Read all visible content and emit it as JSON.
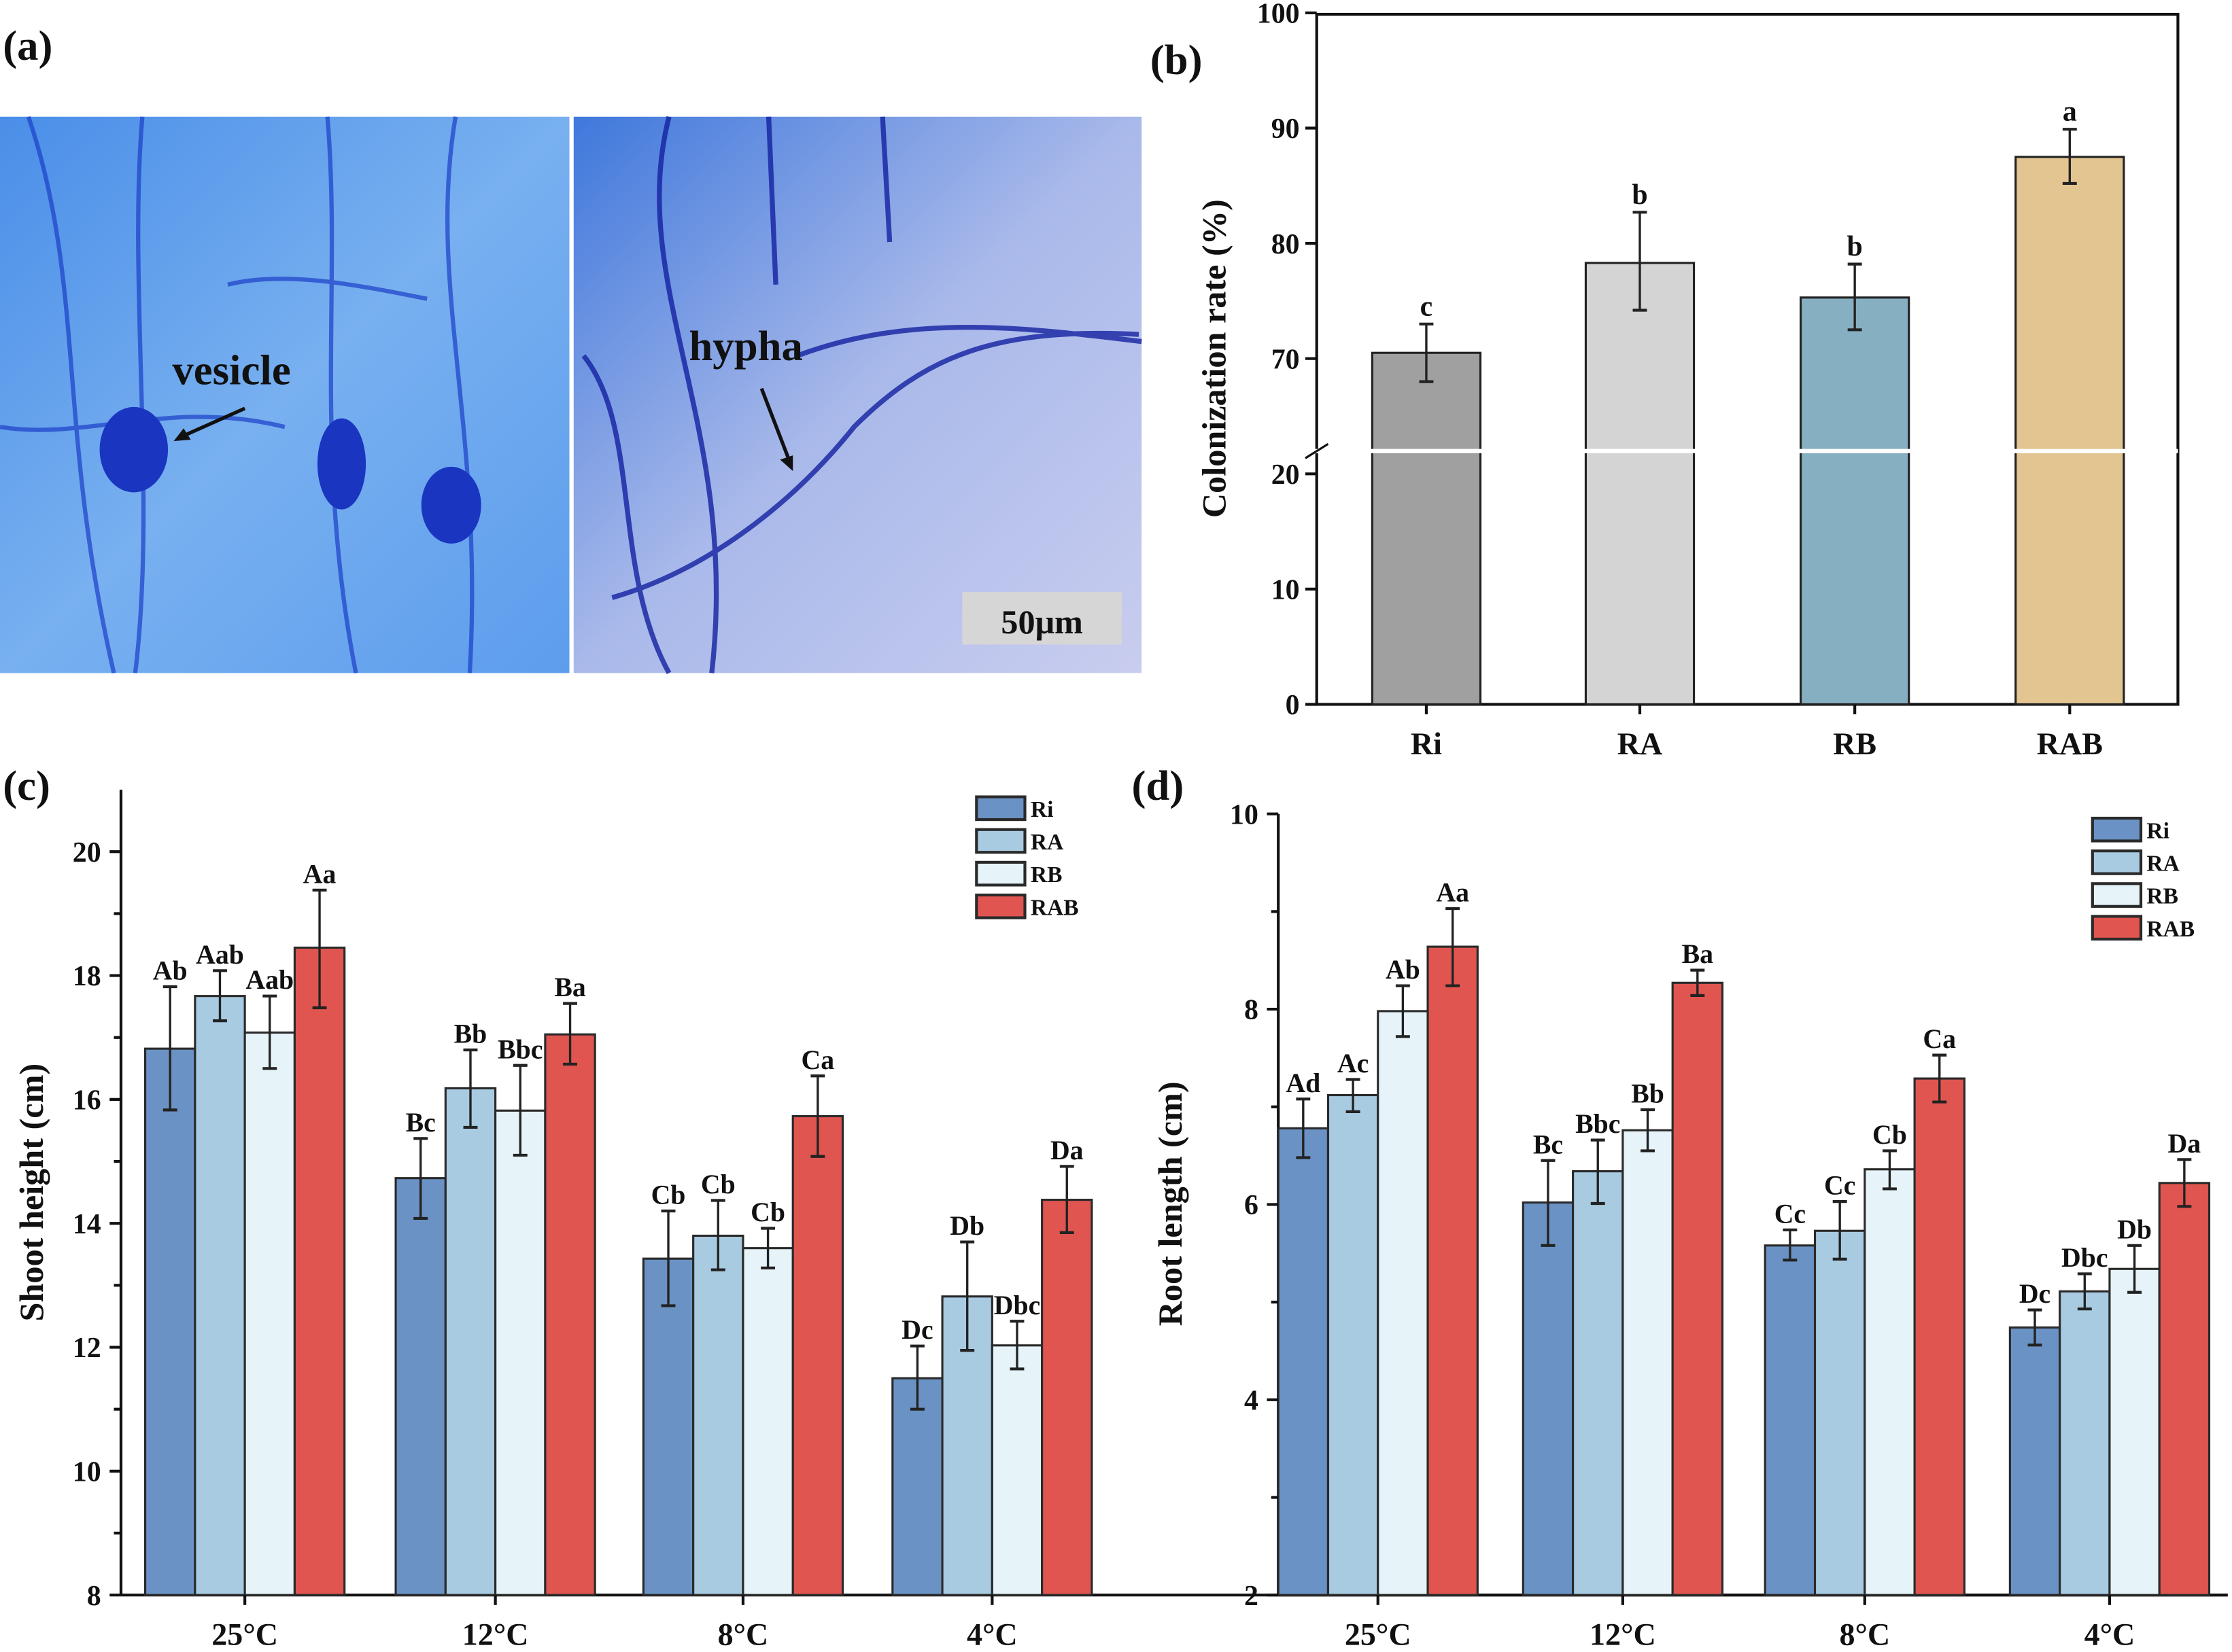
{
  "panels": {
    "a": {
      "label": "(a)",
      "annotations": [
        "vesicle",
        "hypha"
      ],
      "scale_bar": "50μm"
    },
    "b": {
      "label": "(b)"
    },
    "c": {
      "label": "(c)"
    },
    "d": {
      "label": "(d)"
    }
  },
  "chart_data": [
    {
      "id": "b",
      "type": "bar",
      "title": "",
      "ylabel": "Colonization rate (%)",
      "xlabel": "",
      "categories": [
        "Ri",
        "RA",
        "RB",
        "RAB"
      ],
      "values": [
        70.5,
        78.3,
        75.3,
        87.5
      ],
      "err_low": [
        68.0,
        74.2,
        72.5,
        85.2
      ],
      "err_high": [
        73.0,
        82.7,
        78.2,
        89.9
      ],
      "letters": [
        "c",
        "b",
        "b",
        "a"
      ],
      "colors": [
        "#a0a0a0",
        "#d4d4d4",
        "#86afc2",
        "#e3c591"
      ],
      "ylim": [
        0,
        100
      ],
      "axis_break": [
        20,
        70
      ],
      "yticks": [
        "0",
        "10",
        "20",
        "70",
        "80",
        "90",
        "100"
      ]
    },
    {
      "id": "c",
      "type": "bar",
      "ylabel": "Shoot height (cm)",
      "xlabel": "",
      "categories": [
        "25°C",
        "12°C",
        "8°C",
        "4°C"
      ],
      "ylim": [
        8,
        21
      ],
      "yticks": [
        "8",
        "10",
        "12",
        "14",
        "16",
        "18",
        "20"
      ],
      "legend_position": "top-right",
      "series": [
        {
          "name": "Ri",
          "color": "#6a92c4",
          "values": [
            16.82,
            14.73,
            13.43,
            11.5
          ],
          "err_low": [
            15.83,
            14.08,
            12.67,
            11.0
          ],
          "err_high": [
            17.82,
            15.37,
            14.2,
            12.02
          ],
          "letters": [
            "Ab",
            "Bc",
            "Cb",
            "Dc"
          ]
        },
        {
          "name": "RA",
          "color": "#a8cbe2",
          "values": [
            17.67,
            16.18,
            13.8,
            12.82
          ],
          "err_low": [
            17.27,
            15.55,
            13.25,
            11.95
          ],
          "err_high": [
            18.08,
            16.8,
            14.37,
            13.7
          ],
          "letters": [
            "Aab",
            "Bb",
            "Cb",
            "Db"
          ]
        },
        {
          "name": "RB",
          "color": "#e6f4fa",
          "values": [
            17.08,
            15.82,
            13.6,
            12.03
          ],
          "err_low": [
            16.5,
            15.1,
            13.28,
            11.65
          ],
          "err_high": [
            17.67,
            16.55,
            13.92,
            12.42
          ],
          "letters": [
            "Aab",
            "Bbc",
            "Cb",
            "Dbc"
          ]
        },
        {
          "name": "RAB",
          "color": "#e05550",
          "values": [
            18.45,
            17.05,
            15.73,
            14.38
          ],
          "err_low": [
            17.48,
            16.57,
            15.08,
            13.85
          ],
          "err_high": [
            19.38,
            17.55,
            16.38,
            14.92
          ],
          "letters": [
            "Aa",
            "Ba",
            "Ca",
            "Da"
          ]
        }
      ]
    },
    {
      "id": "d",
      "type": "bar",
      "ylabel": "Root length (cm)",
      "xlabel": "",
      "categories": [
        "25°C",
        "12°C",
        "8°C",
        "4°C"
      ],
      "ylim": [
        2,
        10
      ],
      "yticks": [
        "2",
        "4",
        "6",
        "8",
        "10"
      ],
      "legend_position": "top-right",
      "series": [
        {
          "name": "Ri",
          "color": "#6a92c4",
          "values": [
            6.78,
            6.02,
            5.58,
            4.74
          ],
          "err_low": [
            6.48,
            5.58,
            5.43,
            4.56
          ],
          "err_high": [
            7.08,
            6.45,
            5.74,
            4.92
          ],
          "letters": [
            "Ad",
            "Bc",
            "Cc",
            "Dc"
          ]
        },
        {
          "name": "RA",
          "color": "#a8cbe2",
          "values": [
            7.12,
            6.34,
            5.73,
            5.11
          ],
          "err_low": [
            6.95,
            6.01,
            5.44,
            4.93
          ],
          "err_high": [
            7.28,
            6.66,
            6.03,
            5.29
          ],
          "letters": [
            "Ac",
            "Bbc",
            "Cc",
            "Dbc"
          ]
        },
        {
          "name": "RB",
          "color": "#e6f4fa",
          "values": [
            7.98,
            6.76,
            6.36,
            5.34
          ],
          "err_low": [
            7.72,
            6.55,
            6.16,
            5.1
          ],
          "err_high": [
            8.24,
            6.97,
            6.55,
            5.58
          ],
          "letters": [
            "Ab",
            "Bb",
            "Cb",
            "Db"
          ]
        },
        {
          "name": "RAB",
          "color": "#e05550",
          "values": [
            8.64,
            8.27,
            7.29,
            6.22
          ],
          "err_low": [
            8.24,
            8.14,
            7.05,
            5.98
          ],
          "err_high": [
            9.03,
            8.4,
            7.53,
            6.46
          ],
          "letters": [
            "Aa",
            "Ba",
            "Ca",
            "Da"
          ]
        }
      ]
    }
  ]
}
